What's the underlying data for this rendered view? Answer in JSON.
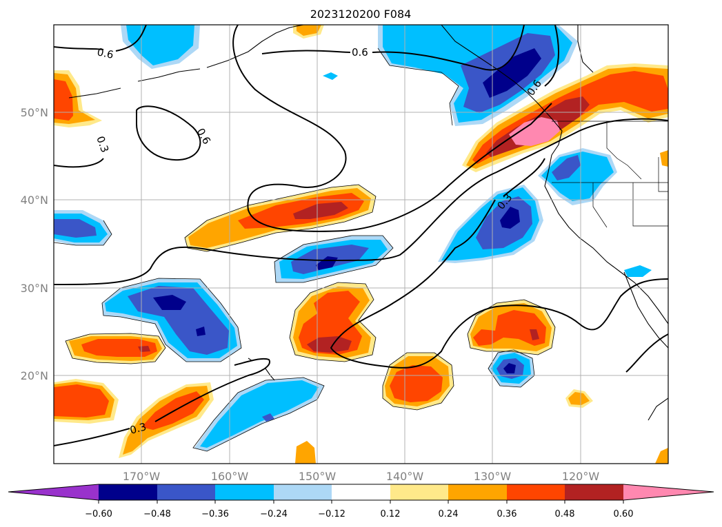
{
  "map": {
    "title": "2023120200 F084",
    "lat_labels": [
      "50°N",
      "40°N",
      "30°N",
      "20°N"
    ],
    "lon_labels": [
      "170°W",
      "160°W",
      "150°W",
      "140°W",
      "130°W",
      "120°W"
    ],
    "contour_labels": [
      "0.6",
      "0.6",
      "0.6",
      "0.6",
      "0.3",
      "0.3",
      "0.3"
    ]
  },
  "colorbar": {
    "ticks": [
      "−0.60",
      "−0.48",
      "−0.36",
      "−0.24",
      "−0.12",
      "0.12",
      "0.24",
      "0.36",
      "0.48",
      "0.60"
    ],
    "colors": [
      "#9932cc",
      "#00008b",
      "#3a56c8",
      "#00bfff",
      "#add8f6",
      "#ffffff",
      "#ffe98a",
      "#ffa500",
      "#ff4500",
      "#b22222",
      "#ff88b0"
    ]
  },
  "colors": {
    "neg_strong": "#00008b",
    "neg_mid": "#3a56c8",
    "neg_weak": "#00bfff",
    "neg_faint": "#add8f6",
    "pos_faint": "#ffe98a",
    "pos_weak": "#ffa500",
    "pos_mid": "#ff4500",
    "pos_strong": "#b22222",
    "pos_max": "#ff88b0"
  }
}
